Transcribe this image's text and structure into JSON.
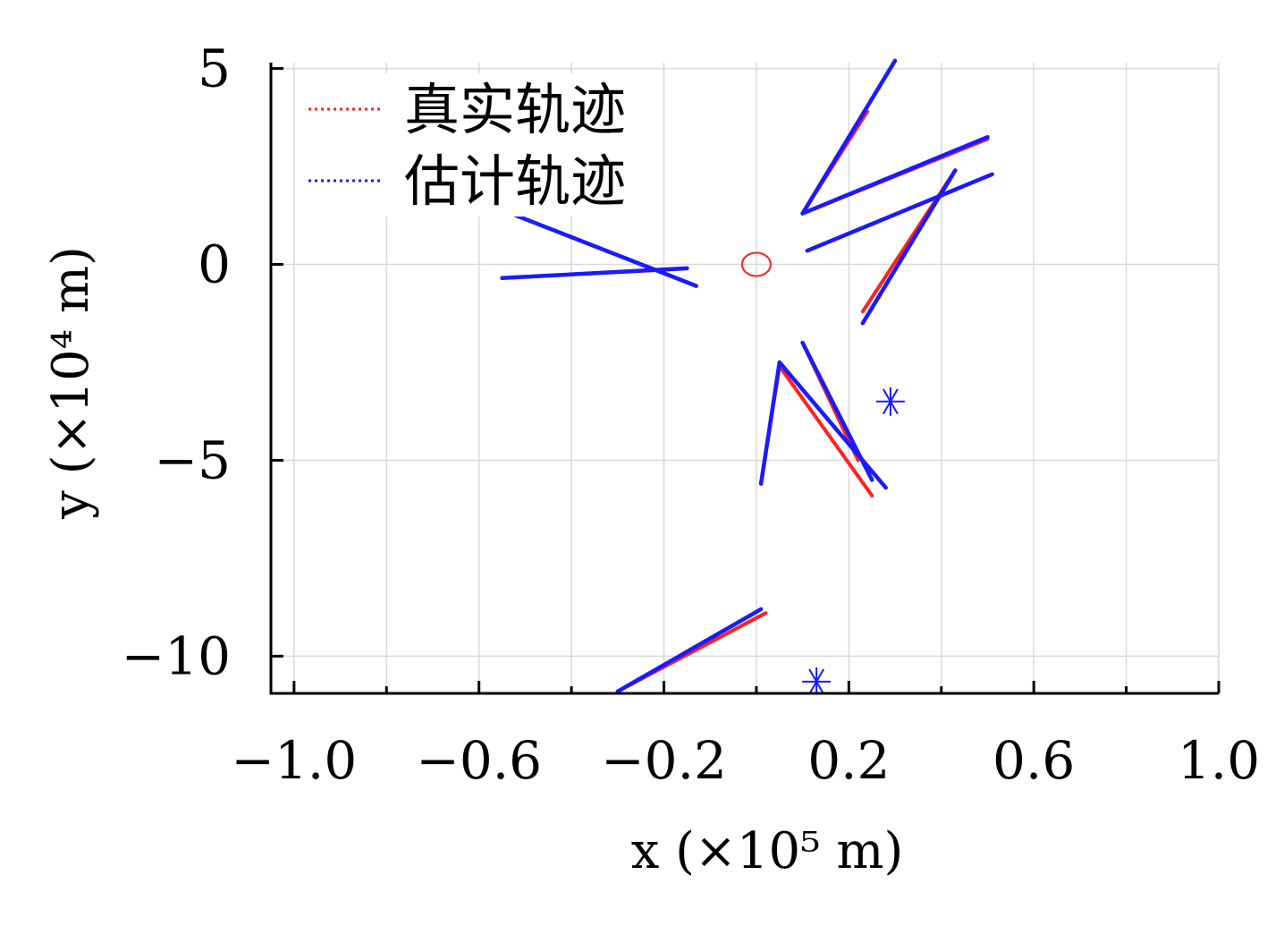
{
  "chart_data": {
    "type": "line",
    "xlabel": "x (×10⁵ m)",
    "ylabel": "y (×10⁴ m)",
    "xlim": [
      -1.05,
      1.0
    ],
    "ylim": [
      -10.95,
      5.15
    ],
    "xticks": [
      -1.0,
      -0.6,
      -0.2,
      0.2,
      0.6,
      1.0
    ],
    "xtick_labels": [
      "−1.0",
      "−0.6",
      "−0.2",
      "0.2",
      "0.6",
      "1.0"
    ],
    "xminor_ticks": [
      -0.8,
      -0.4,
      0.0,
      0.4,
      0.8
    ],
    "yticks": [
      5,
      0,
      -5,
      -10
    ],
    "ytick_labels": [
      "5",
      "0",
      "−5",
      "−10"
    ],
    "grid": true,
    "legend_position": "top-left",
    "colors": {
      "true": "#ff2020",
      "estimate": "#1a1aff",
      "observer": "#ff2020",
      "sensor": "#1a1aff"
    },
    "series": [
      {
        "name": "真实轨迹",
        "color": "#ff2020",
        "segments": [
          [
            [
              -0.52,
              1.25
            ],
            [
              -0.13,
              -0.55
            ]
          ],
          [
            [
              -0.55,
              -0.35
            ],
            [
              -0.15,
              -0.1
            ]
          ],
          [
            [
              0.1,
              1.3
            ],
            [
              0.24,
              3.9
            ]
          ],
          [
            [
              0.1,
              1.3
            ],
            [
              0.5,
              3.2
            ]
          ],
          [
            [
              0.11,
              0.35
            ],
            [
              0.43,
              1.9
            ]
          ],
          [
            [
              0.43,
              2.4
            ],
            [
              0.23,
              -1.2
            ]
          ],
          [
            [
              0.05,
              -2.6
            ],
            [
              0.25,
              -5.9
            ]
          ],
          [
            [
              0.01,
              -5.6
            ],
            [
              0.05,
              -2.6
            ]
          ],
          [
            [
              0.1,
              -2.0
            ],
            [
              0.22,
              -5.0
            ]
          ],
          [
            [
              -0.3,
              -10.9
            ],
            [
              0.02,
              -8.9
            ]
          ]
        ]
      },
      {
        "name": "估计轨迹",
        "color": "#1a1aff",
        "segments": [
          [
            [
              -0.52,
              1.25
            ],
            [
              -0.13,
              -0.55
            ]
          ],
          [
            [
              -0.55,
              -0.35
            ],
            [
              -0.15,
              -0.1
            ]
          ],
          [
            [
              0.1,
              1.3
            ],
            [
              0.3,
              5.2
            ]
          ],
          [
            [
              0.1,
              1.3
            ],
            [
              0.5,
              3.25
            ]
          ],
          [
            [
              0.11,
              0.35
            ],
            [
              0.51,
              2.3
            ]
          ],
          [
            [
              0.43,
              2.4
            ],
            [
              0.23,
              -1.5
            ]
          ],
          [
            [
              0.05,
              -2.5
            ],
            [
              0.28,
              -5.7
            ]
          ],
          [
            [
              0.01,
              -5.6
            ],
            [
              0.05,
              -2.5
            ]
          ],
          [
            [
              0.1,
              -2.0
            ],
            [
              0.25,
              -5.5
            ]
          ],
          [
            [
              -0.3,
              -10.9
            ],
            [
              0.01,
              -8.8
            ]
          ]
        ]
      }
    ],
    "markers": [
      {
        "label": "observer",
        "shape": "circle",
        "x": 0.0,
        "y": 0.0,
        "color": "#ff2020"
      },
      {
        "label": "sensor-1",
        "shape": "asterisk",
        "x": 0.29,
        "y": -3.5,
        "color": "#1a1aff"
      },
      {
        "label": "sensor-2",
        "shape": "asterisk",
        "x": 0.13,
        "y": -10.65,
        "color": "#1a1aff"
      }
    ]
  }
}
